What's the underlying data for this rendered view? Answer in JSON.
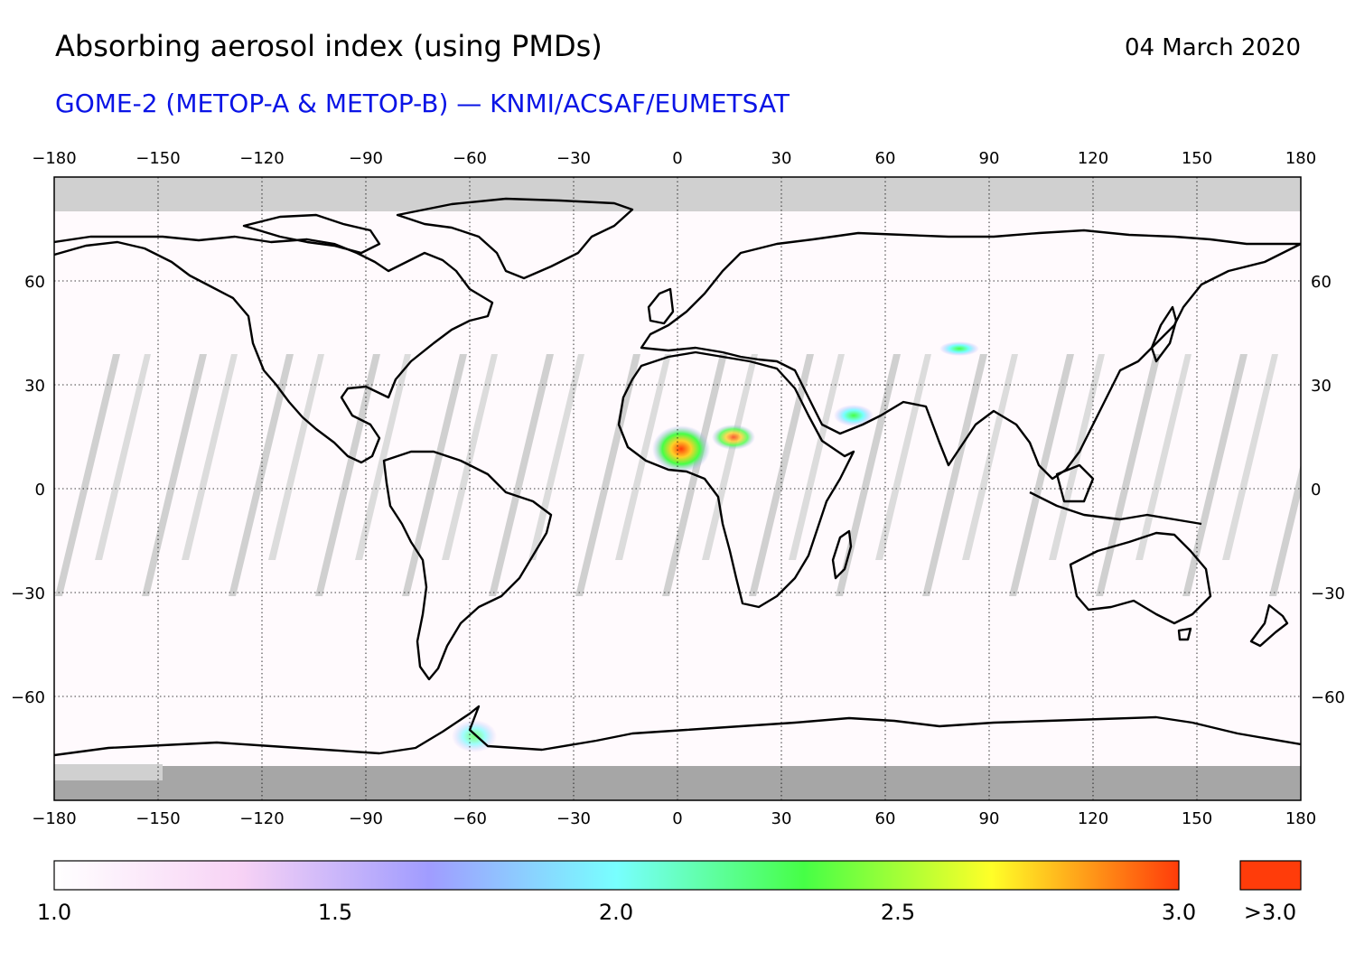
{
  "header": {
    "title": "Absorbing aerosol index (using PMDs)",
    "date": "04 March 2020",
    "subtitle": "GOME-2 (METOP-A & METOP-B) — KNMI/ACSAF/EUMETSAT"
  },
  "map": {
    "lon_range": [
      -180,
      180
    ],
    "lat_range": [
      -90,
      90
    ],
    "lon_ticks": [
      -180,
      -150,
      -120,
      -90,
      -60,
      -30,
      0,
      30,
      60,
      90,
      120,
      150,
      180
    ],
    "lat_ticks": [
      60,
      30,
      0,
      -30,
      -60
    ],
    "lon_tick_labels": [
      "−180",
      "−150",
      "−120",
      "−90",
      "−60",
      "−30",
      "0",
      "30",
      "60",
      "90",
      "120",
      "150",
      "180"
    ],
    "lat_tick_labels": [
      "60",
      "30",
      "0",
      "−30",
      "−60"
    ],
    "grid": "dotted",
    "no_data_color": "#d0d0d0",
    "polar_night_color": "#a6a6a6",
    "hotspots": [
      {
        "lon": 0,
        "lat": 12,
        "value": 3.2
      },
      {
        "lon": 15,
        "lat": 16,
        "value": 2.8
      },
      {
        "lon": 52,
        "lat": 22,
        "value": 2.0
      },
      {
        "lon": 80,
        "lat": 38,
        "value": 1.9
      }
    ]
  },
  "colorbar": {
    "min": 1.0,
    "max": 3.0,
    "labels": [
      "1.0",
      "1.5",
      "2.0",
      "2.5",
      "3.0"
    ],
    "overflow_label": ">3.0",
    "overflow_color": "#ff3c0a",
    "stops": [
      "#ffffff",
      "#f7d2f5",
      "#a09cff",
      "#78ffff",
      "#46ff46",
      "#ffff28",
      "#ff3c0a"
    ]
  }
}
